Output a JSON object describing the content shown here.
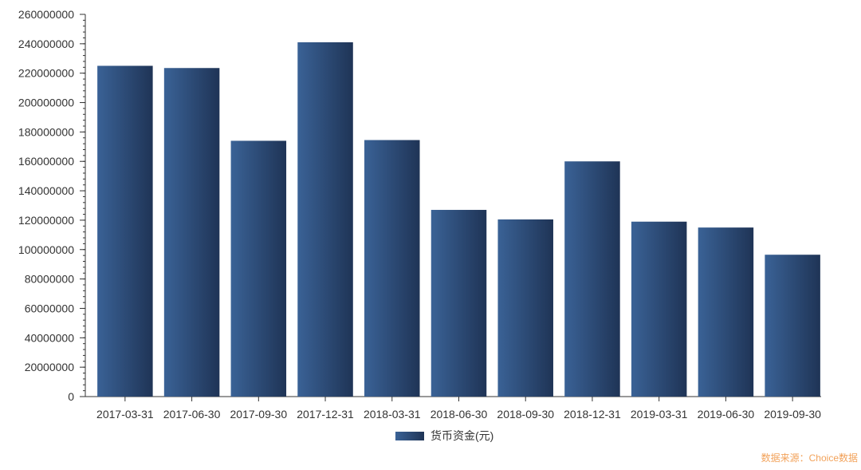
{
  "chart_data": {
    "type": "bar",
    "categories": [
      "2017-03-31",
      "2017-06-30",
      "2017-09-30",
      "2017-12-31",
      "2018-03-31",
      "2018-06-30",
      "2018-09-30",
      "2018-12-31",
      "2019-03-31",
      "2019-06-30",
      "2019-09-30"
    ],
    "series": [
      {
        "name": "货币资金(元)",
        "values": [
          225000000,
          223500000,
          174000000,
          241000000,
          174500000,
          127000000,
          120500000,
          160000000,
          119000000,
          115000000,
          96500000
        ]
      }
    ],
    "yticks": [
      0,
      20000000,
      40000000,
      60000000,
      80000000,
      100000000,
      120000000,
      140000000,
      160000000,
      180000000,
      200000000,
      220000000,
      240000000,
      260000000
    ],
    "ylim": [
      0,
      260000000
    ],
    "grid": false,
    "legend_position": "bottom-center"
  },
  "colors": {
    "bar_light": "#3a6296",
    "bar_dark": "#1f3456",
    "axis": "#333333",
    "source_text": "#f2a25a"
  },
  "source": "数据来源：Choice数据"
}
